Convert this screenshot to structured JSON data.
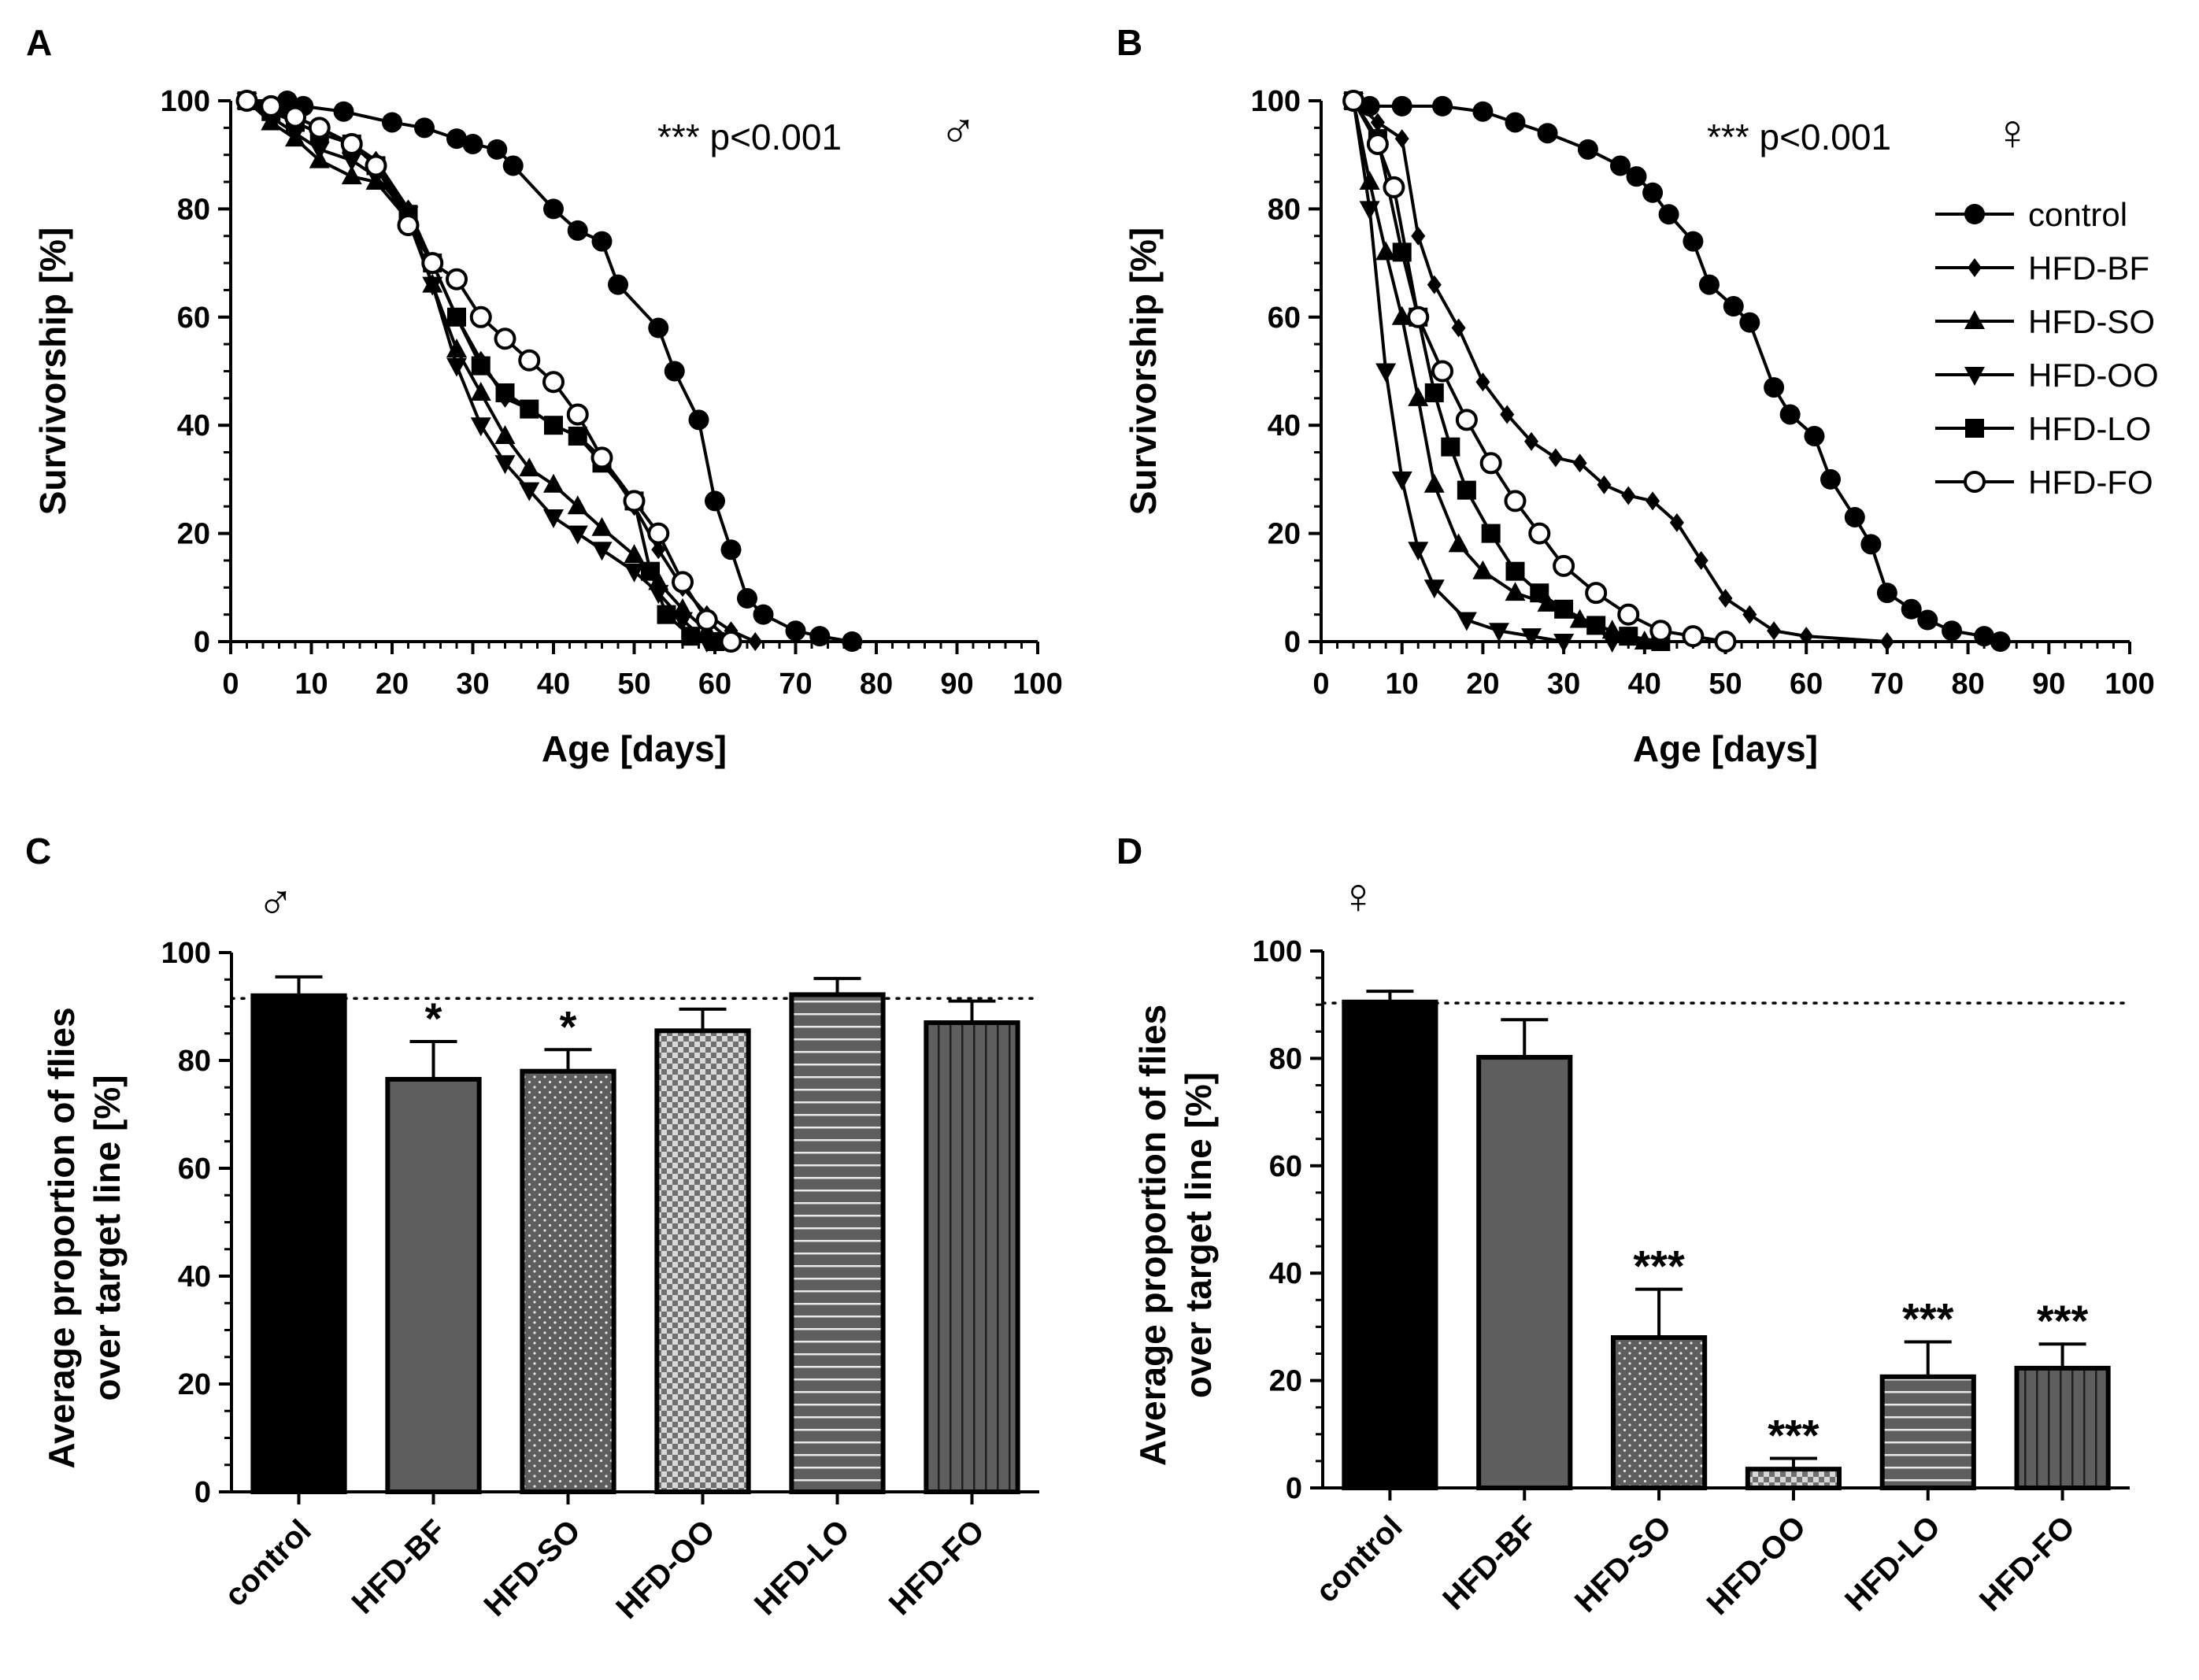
{
  "chart_data": [
    {
      "panel": "A",
      "type": "line",
      "xlabel": "Age [days]",
      "ylabel": "Survivorship [%]",
      "xlim": [
        0,
        100
      ],
      "ylim": [
        0,
        100
      ],
      "xticks": [
        "0",
        "10",
        "20",
        "30",
        "40",
        "50",
        "60",
        "70",
        "80",
        "90",
        "100"
      ],
      "yticks": [
        "0",
        "20",
        "40",
        "60",
        "80",
        "100"
      ],
      "annotation": "*** p<0.001",
      "sex_symbol": "♂",
      "series": [
        {
          "name": "control",
          "marker": "circle-filled",
          "x": [
            2,
            7,
            9,
            14,
            20,
            24,
            28,
            30,
            33,
            35,
            40,
            43,
            46,
            48,
            53,
            55,
            58,
            60,
            62,
            64,
            66,
            70,
            73,
            77
          ],
          "y": [
            100,
            100,
            99,
            98,
            96,
            95,
            93,
            92,
            91,
            88,
            80,
            76,
            74,
            66,
            58,
            50,
            41,
            26,
            17,
            8,
            5,
            2,
            1,
            0
          ]
        },
        {
          "name": "HFD-BF",
          "marker": "diamond",
          "x": [
            2,
            5,
            8,
            11,
            15,
            18,
            22,
            25,
            28,
            31,
            34,
            37,
            40,
            43,
            46,
            50,
            53,
            56,
            59,
            62,
            65
          ],
          "y": [
            100,
            98,
            97,
            95,
            92,
            89,
            80,
            70,
            60,
            52,
            45,
            43,
            40,
            38,
            34,
            25,
            17,
            10,
            5,
            2,
            0
          ]
        },
        {
          "name": "HFD-SO",
          "marker": "triangle-up",
          "x": [
            2,
            5,
            8,
            11,
            15,
            18,
            22,
            25,
            28,
            31,
            34,
            37,
            40,
            43,
            46,
            50,
            53,
            56,
            59
          ],
          "y": [
            100,
            96,
            93,
            89,
            86,
            85,
            78,
            66,
            54,
            46,
            38,
            32,
            29,
            25,
            21,
            16,
            11,
            6,
            2
          ]
        },
        {
          "name": "HFD-OO",
          "marker": "triangle-down",
          "x": [
            2,
            5,
            8,
            11,
            15,
            18,
            22,
            25,
            28,
            31,
            34,
            37,
            40,
            43,
            46,
            50,
            53,
            56,
            59
          ],
          "y": [
            100,
            97,
            94,
            91,
            89,
            86,
            79,
            66,
            51,
            40,
            33,
            28,
            23,
            20,
            17,
            13,
            9,
            4,
            0
          ]
        },
        {
          "name": "HFD-LO",
          "marker": "square",
          "x": [
            2,
            5,
            8,
            11,
            15,
            18,
            22,
            25,
            28,
            31,
            34,
            37,
            40,
            43,
            46,
            50,
            52,
            54,
            57,
            60
          ],
          "y": [
            100,
            98,
            96,
            94,
            92,
            88,
            79,
            70,
            60,
            51,
            46,
            43,
            40,
            38,
            33,
            26,
            13,
            5,
            1,
            0
          ]
        },
        {
          "name": "HFD-FO",
          "marker": "circle-open",
          "x": [
            2,
            5,
            8,
            11,
            15,
            18,
            22,
            25,
            28,
            31,
            34,
            37,
            40,
            43,
            46,
            50,
            53,
            56,
            59,
            62
          ],
          "y": [
            100,
            99,
            97,
            95,
            92,
            88,
            77,
            70,
            67,
            60,
            56,
            52,
            48,
            42,
            34,
            26,
            20,
            11,
            4,
            0
          ]
        }
      ]
    },
    {
      "panel": "B",
      "type": "line",
      "xlabel": "Age [days]",
      "ylabel": "Survivorship [%]",
      "xlim": [
        0,
        100
      ],
      "ylim": [
        0,
        100
      ],
      "xticks": [
        "0",
        "10",
        "20",
        "30",
        "40",
        "50",
        "60",
        "70",
        "80",
        "90",
        "100"
      ],
      "yticks": [
        "0",
        "20",
        "40",
        "60",
        "80",
        "100"
      ],
      "annotation": "*** p<0.001",
      "sex_symbol": "♀",
      "legend": [
        "control",
        "HFD-BF",
        "HFD-SO",
        "HFD-OO",
        "HFD-LO",
        "HFD-FO"
      ],
      "series": [
        {
          "name": "control",
          "marker": "circle-filled",
          "x": [
            4,
            6,
            10,
            15,
            20,
            24,
            28,
            33,
            37,
            39,
            41,
            43,
            46,
            48,
            51,
            53,
            56,
            58,
            61,
            63,
            66,
            68,
            70,
            73,
            75,
            78,
            82,
            84
          ],
          "y": [
            100,
            99,
            99,
            99,
            98,
            96,
            94,
            91,
            88,
            86,
            83,
            79,
            74,
            66,
            62,
            59,
            47,
            42,
            38,
            30,
            23,
            18,
            9,
            6,
            4,
            2,
            1,
            0
          ]
        },
        {
          "name": "HFD-BF",
          "marker": "diamond",
          "x": [
            4,
            7,
            10,
            12,
            14,
            17,
            20,
            23,
            26,
            29,
            32,
            35,
            38,
            41,
            44,
            47,
            50,
            53,
            56,
            60,
            70
          ],
          "y": [
            100,
            96,
            93,
            75,
            66,
            58,
            48,
            42,
            37,
            34,
            33,
            29,
            27,
            26,
            22,
            15,
            8,
            5,
            2,
            1,
            0
          ]
        },
        {
          "name": "HFD-SO",
          "marker": "triangle-up",
          "x": [
            4,
            6,
            8,
            10,
            12,
            14,
            17,
            20,
            24,
            28,
            32,
            36,
            40
          ],
          "y": [
            100,
            85,
            72,
            60,
            45,
            29,
            18,
            13,
            9,
            7,
            4,
            2,
            0
          ]
        },
        {
          "name": "HFD-OO",
          "marker": "triangle-down",
          "x": [
            4,
            6,
            8,
            10,
            12,
            14,
            18,
            22,
            26,
            30,
            36
          ],
          "y": [
            100,
            80,
            50,
            30,
            17,
            10,
            4,
            2,
            1,
            0,
            0
          ]
        },
        {
          "name": "HFD-LO",
          "marker": "square",
          "x": [
            4,
            7,
            10,
            12,
            14,
            16,
            18,
            21,
            24,
            27,
            30,
            34,
            38,
            42
          ],
          "y": [
            100,
            93,
            72,
            60,
            46,
            36,
            28,
            20,
            13,
            9,
            6,
            3,
            1,
            0
          ]
        },
        {
          "name": "HFD-FO",
          "marker": "circle-open",
          "x": [
            4,
            7,
            9,
            12,
            15,
            18,
            21,
            24,
            27,
            30,
            34,
            38,
            42,
            46,
            50
          ],
          "y": [
            100,
            92,
            84,
            60,
            50,
            41,
            33,
            26,
            20,
            14,
            9,
            5,
            2,
            1,
            0
          ]
        }
      ]
    },
    {
      "panel": "C",
      "type": "bar",
      "ylabel_line1": "Average proportion of flies",
      "ylabel_line2": "over target line [%]",
      "ylim": [
        0,
        100
      ],
      "yticks": [
        "0",
        "20",
        "40",
        "60",
        "80",
        "100"
      ],
      "sex_symbol": "♂",
      "reference_line": 91.5,
      "categories": [
        "control",
        "HFD-BF",
        "HFD-SO",
        "HFD-OO",
        "HFD-LO",
        "HFD-FO"
      ],
      "values": [
        92,
        76.5,
        78,
        85.5,
        92.2,
        87
      ],
      "errors": [
        3.5,
        7,
        4,
        4,
        3,
        4
      ],
      "significance": [
        "",
        "*",
        "*",
        "",
        "",
        ""
      ],
      "patterns": [
        "solid-black",
        "solid-gray",
        "dots",
        "checker",
        "h-stripes",
        "v-stripes"
      ]
    },
    {
      "panel": "D",
      "type": "bar",
      "ylabel_line1": "Average proportion of flies",
      "ylabel_line2": "over target line [%]",
      "ylim": [
        0,
        100
      ],
      "yticks": [
        "0",
        "20",
        "40",
        "60",
        "80",
        "100"
      ],
      "sex_symbol": "♀",
      "reference_line": 90.3,
      "categories": [
        "control",
        "HFD-BF",
        "HFD-SO",
        "HFD-OO",
        "HFD-LO",
        "HFD-FO"
      ],
      "values": [
        90.5,
        80.2,
        28,
        3.5,
        20.7,
        22.3
      ],
      "errors": [
        2,
        7,
        9,
        2,
        6.5,
        4.5
      ],
      "significance": [
        "",
        "",
        "***",
        "***",
        "***",
        "***"
      ],
      "patterns": [
        "solid-black",
        "solid-gray",
        "dots",
        "checker",
        "h-stripes",
        "v-stripes"
      ]
    }
  ]
}
